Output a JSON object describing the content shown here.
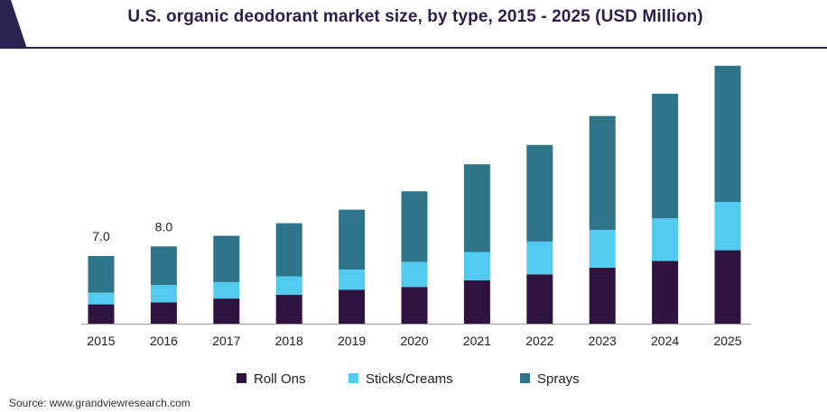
{
  "colors": {
    "roll_ons": "#2e1340",
    "sticks_creams": "#53cbf0",
    "sprays": "#2f7589",
    "title": "#2b1f4a",
    "header_accent": "#2b2350"
  },
  "source_text": "Source: www.grandviewresearch.com",
  "chart_data": {
    "type": "bar",
    "stacked": true,
    "title": "U.S. organic deodorant market size, by type, 2015 - 2025 (USD Million)",
    "xlabel": "",
    "ylabel": "",
    "categories": [
      "2015",
      "2016",
      "2017",
      "2018",
      "2019",
      "2020",
      "2021",
      "2022",
      "2023",
      "2024",
      "2025"
    ],
    "series": [
      {
        "name": "Roll Ons",
        "values": [
          2.0,
          2.2,
          2.6,
          3.0,
          3.5,
          3.8,
          4.5,
          5.1,
          5.8,
          6.5,
          7.6
        ]
      },
      {
        "name": "Sticks/Creams",
        "values": [
          1.2,
          1.8,
          1.7,
          1.9,
          2.1,
          2.6,
          2.9,
          3.4,
          3.9,
          4.4,
          5.0
        ]
      },
      {
        "name": "Sprays",
        "values": [
          3.8,
          4.0,
          4.8,
          5.5,
          6.2,
          7.3,
          9.1,
          10.0,
          11.8,
          12.9,
          14.1
        ]
      }
    ],
    "data_labels": [
      "7.0",
      "8.0",
      "",
      "",
      "",
      "",
      "",
      "",
      "",
      "",
      ""
    ],
    "ylim": [
      0,
      28
    ],
    "grid": false,
    "legend": "bottom"
  }
}
